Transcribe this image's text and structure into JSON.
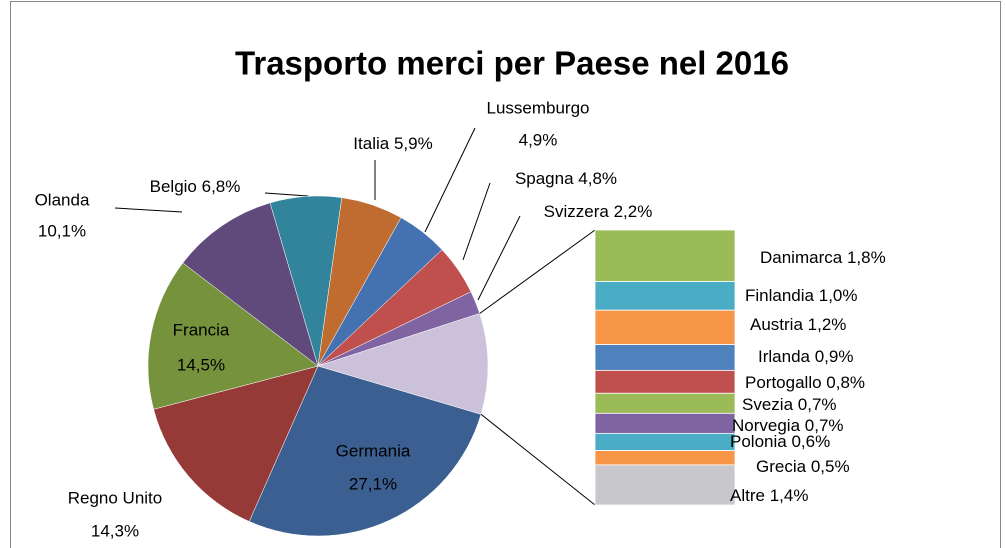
{
  "chart_data": {
    "type": "bar_of_pie",
    "title": "Trasporto merci per Paese nel 2016",
    "categories": [
      "Germania",
      "Regno Unito",
      "Francia",
      "Olanda",
      "Belgio",
      "Italia",
      "Lussemburgo",
      "Spagna",
      "Svizzera"
    ],
    "values": [
      27.1,
      14.3,
      14.5,
      10.1,
      6.8,
      5.9,
      4.9,
      4.8,
      2.2
    ],
    "value_labels": [
      "27,1%",
      "14,3%",
      "14,5%",
      "10,1%",
      "6,8%",
      "5,9%",
      "4,9%",
      "4,8%",
      "2,2%"
    ],
    "colors": [
      "#3b5f91",
      "#963a37",
      "#76923c",
      "#5f4a7b",
      "#31849b",
      "#c06b2f",
      "#4471b0",
      "#c0504d",
      "#8064a2"
    ],
    "other_color": "#ccc1da",
    "bar_categories": [
      "Danimarca",
      "Finlandia",
      "Austria",
      "Irlanda",
      "Portogallo",
      "Svezia",
      "Norvegia",
      "Polonia",
      "Grecia",
      "Altre"
    ],
    "bar_values": [
      1.8,
      1.0,
      1.2,
      0.9,
      0.8,
      0.7,
      0.7,
      0.6,
      0.5,
      1.4
    ],
    "bar_value_labels": [
      "1,8%",
      "1,0%",
      "1,2%",
      "0,9%",
      "0,8%",
      "0,7%",
      "0,7%",
      "0,6%",
      "0,5%",
      "1,4%"
    ],
    "bar_colors": [
      "#9bbb59",
      "#4bacc6",
      "#f79646",
      "#4f81bd",
      "#c0504d",
      "#9bbb59",
      "#8064a2",
      "#4bacc6",
      "#f79646",
      "#c8c8cc"
    ]
  }
}
